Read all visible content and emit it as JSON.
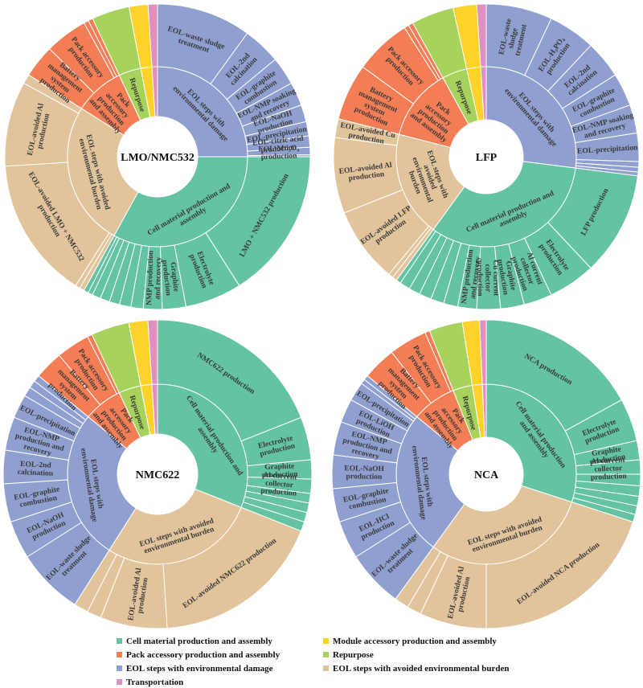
{
  "colors": {
    "cell": "#63c3a2",
    "pack": "#f37e56",
    "eol_damage": "#8f9fcf",
    "repurpose": "#a7d35d",
    "module": "#fdd22a",
    "eol_avoided": "#e2c49c",
    "transport": "#df8fc0"
  },
  "legend": [
    {
      "key": "cell",
      "label": "Cell material production and assembly"
    },
    {
      "key": "pack",
      "label": "Pack accessory production and assembly"
    },
    {
      "key": "eol_damage",
      "label": "EOL steps with environmental damage"
    },
    {
      "key": "transport",
      "label": "Transportation"
    },
    {
      "key": "module",
      "label": "Module accessory production and assembly"
    },
    {
      "key": "repurpose",
      "label": "Repurpose"
    },
    {
      "key": "eol_avoided",
      "label": "EOL steps with avoided environmental burden"
    }
  ],
  "chart_data": [
    {
      "type": "sunburst",
      "title": "LMO/NMC532",
      "inner": [
        {
          "key": "eol_damage",
          "value": 25,
          "label": "EOL steps with environmental damage"
        },
        {
          "key": "cell",
          "value": 33,
          "label": "Cell material production and assembly"
        },
        {
          "key": "eol_avoided",
          "value": 26,
          "label": "EOL steps with avoided environmental burden"
        },
        {
          "key": "pack",
          "value": 9,
          "label": "Pack accessory production and assembly"
        },
        {
          "key": "repurpose",
          "value": 4,
          "label": "Repurpose"
        },
        {
          "key": "module",
          "value": 2,
          "label": ""
        },
        {
          "key": "transport",
          "value": 1,
          "label": ""
        }
      ],
      "outer": [
        {
          "key": "eol_damage",
          "value": 10,
          "label": "EOL-waste sludge treatment"
        },
        {
          "key": "eol_damage",
          "value": 4,
          "label": "EOL-2nd calcination"
        },
        {
          "key": "eol_damage",
          "value": 3,
          "label": "EOL-graphite combustion"
        },
        {
          "key": "eol_damage",
          "value": 2.5,
          "label": "EOL-NMP soaking and recovery"
        },
        {
          "key": "eol_damage",
          "value": 1.8,
          "label": "EOL-NaOH production"
        },
        {
          "key": "eol_damage",
          "value": 1.5,
          "label": "EOL-precipitation"
        },
        {
          "key": "eol_damage",
          "value": 1.2,
          "label": "EOL-citric acid production"
        },
        {
          "key": "eol_damage",
          "value": 0.8,
          "label": "EOL-Mn₃O₄ production"
        },
        {
          "key": "eol_damage",
          "value": 0.2,
          "label": ""
        },
        {
          "key": "cell",
          "value": 16,
          "label": "LMO + NMC532 production"
        },
        {
          "key": "cell",
          "value": 6,
          "label": "Electrolyte production"
        },
        {
          "key": "cell",
          "value": 2.5,
          "label": "Graphite production"
        },
        {
          "key": "cell",
          "value": 2,
          "label": "NMP production and recovery"
        },
        {
          "key": "cell",
          "value": 1.3,
          "label": ""
        },
        {
          "key": "cell",
          "value": 1.2,
          "label": ""
        },
        {
          "key": "cell",
          "value": 1.1,
          "label": ""
        },
        {
          "key": "cell",
          "value": 1,
          "label": ""
        },
        {
          "key": "cell",
          "value": 0.9,
          "label": ""
        },
        {
          "key": "cell",
          "value": 0.5,
          "label": ""
        },
        {
          "key": "cell",
          "value": 0.5,
          "label": ""
        },
        {
          "key": "eol_avoided",
          "value": 0.5,
          "label": ""
        },
        {
          "key": "eol_avoided",
          "value": 0.5,
          "label": ""
        },
        {
          "key": "eol_avoided",
          "value": 15,
          "label": "EOL-avoided LMO + NMC532 production"
        },
        {
          "key": "eol_avoided",
          "value": 9,
          "label": "EOL-avoided Al production"
        },
        {
          "key": "eol_avoided",
          "value": 1,
          "label": ""
        },
        {
          "key": "pack",
          "value": 3.5,
          "label": "Battery management system production"
        },
        {
          "key": "pack",
          "value": 4.5,
          "label": "Pack accessory production"
        },
        {
          "key": "pack",
          "value": 0.5,
          "label": ""
        },
        {
          "key": "pack",
          "value": 0.5,
          "label": ""
        },
        {
          "key": "repurpose",
          "value": 4,
          "label": ""
        },
        {
          "key": "module",
          "value": 2,
          "label": ""
        },
        {
          "key": "transport",
          "value": 1,
          "label": ""
        }
      ]
    },
    {
      "type": "sunburst",
      "title": "LFP",
      "inner": [
        {
          "key": "eol_damage",
          "value": 27,
          "label": "EOL steps with environmental damage"
        },
        {
          "key": "cell",
          "value": 33,
          "label": "Cell material production and assembly"
        },
        {
          "key": "eol_avoided",
          "value": 19,
          "label": "EOL steps with avoided environmental burden"
        },
        {
          "key": "pack",
          "value": 13,
          "label": "Pack accessory production and assembly"
        },
        {
          "key": "repurpose",
          "value": 4.5,
          "label": "Repurpose"
        },
        {
          "key": "module",
          "value": 2.5,
          "label": ""
        },
        {
          "key": "transport",
          "value": 1,
          "label": ""
        }
      ],
      "outer": [
        {
          "key": "eol_damage",
          "value": 7,
          "label": "EOL-waste sludge treatment"
        },
        {
          "key": "eol_damage",
          "value": 5,
          "label": "EOL-H₃PO₄ production"
        },
        {
          "key": "eol_damage",
          "value": 4,
          "label": "EOL-2nd calcination"
        },
        {
          "key": "eol_damage",
          "value": 3.5,
          "label": "EOL-graphite combustion"
        },
        {
          "key": "eol_damage",
          "value": 3,
          "label": "EOL-NMP soaking and recovery"
        },
        {
          "key": "eol_damage",
          "value": 3,
          "label": "EOL-precipitation"
        },
        {
          "key": "eol_damage",
          "value": 0.6,
          "label": ""
        },
        {
          "key": "eol_damage",
          "value": 0.5,
          "label": ""
        },
        {
          "key": "eol_damage",
          "value": 0.4,
          "label": ""
        },
        {
          "key": "cell",
          "value": 11,
          "label": "LFP production"
        },
        {
          "key": "cell",
          "value": 5,
          "label": "Electrolyte production"
        },
        {
          "key": "cell",
          "value": 3,
          "label": "Al current collector production"
        },
        {
          "key": "cell",
          "value": 2.5,
          "label": "Graphite production"
        },
        {
          "key": "cell",
          "value": 2.5,
          "label": "Cu current collector production"
        },
        {
          "key": "cell",
          "value": 2,
          "label": "NMP production and recovery"
        },
        {
          "key": "cell",
          "value": 1.5,
          "label": ""
        },
        {
          "key": "cell",
          "value": 1.4,
          "label": ""
        },
        {
          "key": "cell",
          "value": 1.3,
          "label": ""
        },
        {
          "key": "cell",
          "value": 1.2,
          "label": ""
        },
        {
          "key": "cell",
          "value": 1.1,
          "label": ""
        },
        {
          "key": "cell",
          "value": 0.5,
          "label": ""
        },
        {
          "key": "eol_avoided",
          "value": 0.5,
          "label": ""
        },
        {
          "key": "eol_avoided",
          "value": 0.5,
          "label": ""
        },
        {
          "key": "eol_avoided",
          "value": 8,
          "label": "EOL-avoided LFP production"
        },
        {
          "key": "eol_avoided",
          "value": 8,
          "label": "EOL-avoided Al production"
        },
        {
          "key": "eol_avoided",
          "value": 2,
          "label": "EOL-avoided Cu production"
        },
        {
          "key": "pack",
          "value": 6,
          "label": "Battery management system production"
        },
        {
          "key": "pack",
          "value": 6,
          "label": "Pack accessory production"
        },
        {
          "key": "pack",
          "value": 0.5,
          "label": ""
        },
        {
          "key": "pack",
          "value": 0.5,
          "label": ""
        },
        {
          "key": "repurpose",
          "value": 4.5,
          "label": ""
        },
        {
          "key": "module",
          "value": 2.5,
          "label": ""
        },
        {
          "key": "transport",
          "value": 1,
          "label": ""
        }
      ]
    },
    {
      "type": "sunburst",
      "title": "NMC622",
      "inner": [
        {
          "key": "cell",
          "value": 31,
          "label": "Cell material production and assembly"
        },
        {
          "key": "eol_avoided",
          "value": 28,
          "label": "EOL steps with avoided environmental burden"
        },
        {
          "key": "eol_damage",
          "value": 27,
          "label": "EOL steps with environmental damage"
        },
        {
          "key": "pack",
          "value": 7,
          "label": "Pack accessory production and assembly"
        },
        {
          "key": "repurpose",
          "value": 4,
          "label": "Repurpose"
        },
        {
          "key": "module",
          "value": 2,
          "label": ""
        },
        {
          "key": "transport",
          "value": 1,
          "label": ""
        }
      ],
      "outer": [
        {
          "key": "cell",
          "value": 19,
          "label": "NMC622 production"
        },
        {
          "key": "cell",
          "value": 4.5,
          "label": "Electrolyte production"
        },
        {
          "key": "cell",
          "value": 2,
          "label": "Graphite production"
        },
        {
          "key": "cell",
          "value": 1.5,
          "label": "Al current collector production"
        },
        {
          "key": "cell",
          "value": 1,
          "label": ""
        },
        {
          "key": "cell",
          "value": 1,
          "label": ""
        },
        {
          "key": "cell",
          "value": 1,
          "label": ""
        },
        {
          "key": "cell",
          "value": 1,
          "label": ""
        },
        {
          "key": "eol_avoided",
          "value": 18,
          "label": "EOL-avoided NMC622 production"
        },
        {
          "key": "eol_avoided",
          "value": 7,
          "label": "EOL-avoided Al production"
        },
        {
          "key": "eol_avoided",
          "value": 1.5,
          "label": ""
        },
        {
          "key": "eol_avoided",
          "value": 1.5,
          "label": ""
        },
        {
          "key": "eol_damage",
          "value": 7,
          "label": "EOL-waste sludge treatment"
        },
        {
          "key": "eol_damage",
          "value": 4,
          "label": "EOL-NaOH production"
        },
        {
          "key": "eol_damage",
          "value": 4,
          "label": "EOL-graphite combustion"
        },
        {
          "key": "eol_damage",
          "value": 3.5,
          "label": "EOL-2nd calcination"
        },
        {
          "key": "eol_damage",
          "value": 3.5,
          "label": "EOL-NMP production and recovery"
        },
        {
          "key": "eol_damage",
          "value": 2.5,
          "label": "EOL-precipitation"
        },
        {
          "key": "eol_damage",
          "value": 1,
          "label": ""
        },
        {
          "key": "eol_damage",
          "value": 0.8,
          "label": ""
        },
        {
          "key": "eol_damage",
          "value": 0.7,
          "label": ""
        },
        {
          "key": "pack",
          "value": 3,
          "label": "Battery management system production"
        },
        {
          "key": "pack",
          "value": 3.5,
          "label": "Pack accessory production"
        },
        {
          "key": "pack",
          "value": 0.5,
          "label": ""
        },
        {
          "key": "repurpose",
          "value": 4,
          "label": ""
        },
        {
          "key": "module",
          "value": 2,
          "label": ""
        },
        {
          "key": "transport",
          "value": 1,
          "label": ""
        }
      ]
    },
    {
      "type": "sunburst",
      "title": "NCA",
      "inner": [
        {
          "key": "cell",
          "value": 30,
          "label": "Cell material production and assembly"
        },
        {
          "key": "eol_avoided",
          "value": 30,
          "label": "EOL steps with avoided environmental burden"
        },
        {
          "key": "eol_damage",
          "value": 26,
          "label": "EOL steps with environmental damage"
        },
        {
          "key": "pack",
          "value": 8,
          "label": "Pack accessory production and assembly"
        },
        {
          "key": "repurpose",
          "value": 3.5,
          "label": "Repurpose"
        },
        {
          "key": "module",
          "value": 1.8,
          "label": ""
        },
        {
          "key": "transport",
          "value": 0.7,
          "label": ""
        }
      ],
      "outer": [
        {
          "key": "cell",
          "value": 17,
          "label": "NCA production"
        },
        {
          "key": "cell",
          "value": 4.5,
          "label": "Electrolyte production"
        },
        {
          "key": "cell",
          "value": 2,
          "label": "Graphite production"
        },
        {
          "key": "cell",
          "value": 1.5,
          "label": "Al current collector production"
        },
        {
          "key": "cell",
          "value": 1.2,
          "label": ""
        },
        {
          "key": "cell",
          "value": 1.1,
          "label": ""
        },
        {
          "key": "cell",
          "value": 1,
          "label": ""
        },
        {
          "key": "cell",
          "value": 0.9,
          "label": ""
        },
        {
          "key": "cell",
          "value": 0.8,
          "label": ""
        },
        {
          "key": "eol_avoided",
          "value": 20,
          "label": "EOL-avoided NCA production"
        },
        {
          "key": "eol_avoided",
          "value": 7,
          "label": "EOL-avoided Al production"
        },
        {
          "key": "eol_avoided",
          "value": 1.5,
          "label": ""
        },
        {
          "key": "eol_avoided",
          "value": 1.5,
          "label": ""
        },
        {
          "key": "eol_damage",
          "value": 6,
          "label": "EOL-waste sludge treatment"
        },
        {
          "key": "eol_damage",
          "value": 4,
          "label": "EOL-HCl production"
        },
        {
          "key": "eol_damage",
          "value": 3.5,
          "label": "EOL-graphite combustion"
        },
        {
          "key": "eol_damage",
          "value": 3.5,
          "label": "EOL-NaOH production"
        },
        {
          "key": "eol_damage",
          "value": 3.5,
          "label": "EOL-NMP production and recovery"
        },
        {
          "key": "eol_damage",
          "value": 2.5,
          "label": "EOL-LiOH production"
        },
        {
          "key": "eol_damage",
          "value": 2,
          "label": "EOL-precipitation"
        },
        {
          "key": "eol_damage",
          "value": 0.5,
          "label": ""
        },
        {
          "key": "eol_damage",
          "value": 0.5,
          "label": ""
        },
        {
          "key": "pack",
          "value": 3.5,
          "label": "Battery management system production"
        },
        {
          "key": "pack",
          "value": 4,
          "label": "Pack accessory production"
        },
        {
          "key": "pack",
          "value": 0.5,
          "label": ""
        },
        {
          "key": "repurpose",
          "value": 3.5,
          "label": ""
        },
        {
          "key": "module",
          "value": 1.8,
          "label": ""
        },
        {
          "key": "transport",
          "value": 0.7,
          "label": ""
        }
      ]
    }
  ]
}
